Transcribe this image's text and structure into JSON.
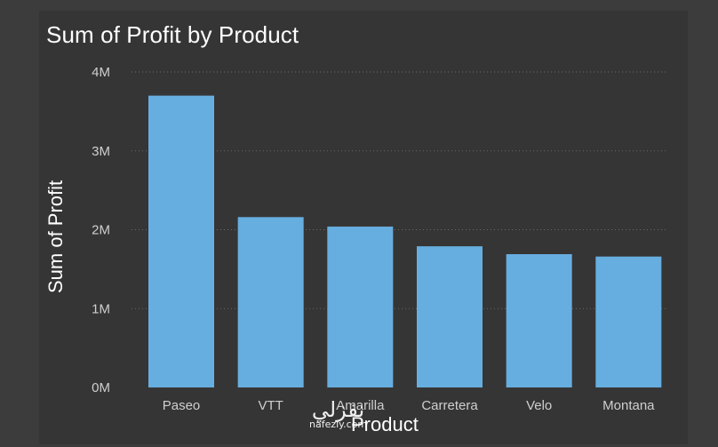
{
  "chart_data": {
    "type": "bar",
    "title": "Sum of Profit by Product",
    "xlabel": "Product",
    "ylabel": "Sum of Profit",
    "categories": [
      "Paseo",
      "VTT",
      "Amarilla",
      "Carretera",
      "Velo",
      "Montana"
    ],
    "values": [
      3700000,
      2160000,
      2040000,
      1790000,
      1690000,
      1660000
    ],
    "ylim": [
      0,
      4000000
    ],
    "yticks": [
      0,
      1000000,
      2000000,
      3000000,
      4000000
    ],
    "ytick_labels": [
      "0M",
      "1M",
      "2M",
      "3M",
      "4M"
    ],
    "grid": true,
    "legend": "none",
    "bar_color": "#67aee0",
    "background_color": "#363535",
    "grid_color": "#6a6a6a"
  },
  "watermark": {
    "glyphs": "نفزلي",
    "url": "nafezly.com"
  }
}
